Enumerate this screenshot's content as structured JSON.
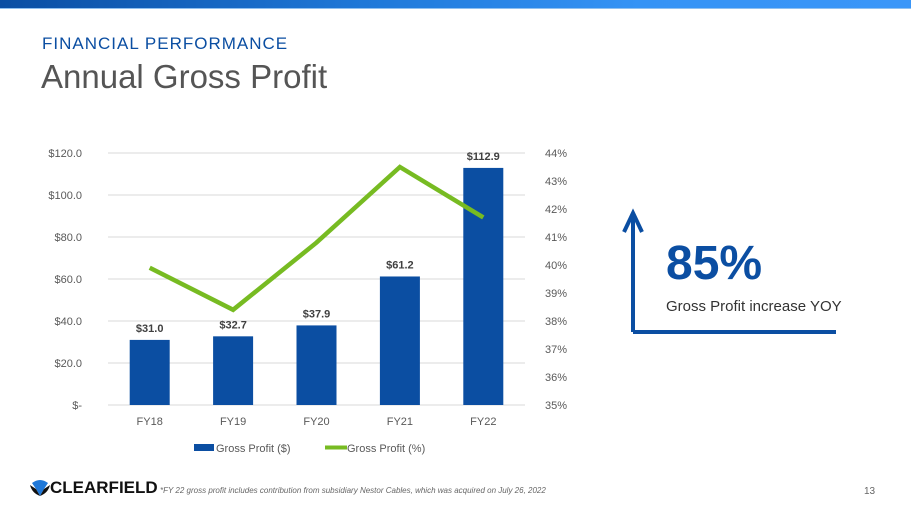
{
  "header": {
    "kicker": "FINANCIAL PERFORMANCE",
    "title": "Annual Gross Profit"
  },
  "chart_data": {
    "type": "bar+line",
    "categories": [
      "FY18",
      "FY19",
      "FY20",
      "FY21",
      "FY22"
    ],
    "series": [
      {
        "name": "Gross Profit ($)",
        "type": "bar",
        "axis": "left",
        "values": [
          31.0,
          32.7,
          37.9,
          61.2,
          112.9
        ],
        "labels": [
          "$31.0",
          "$32.7",
          "$37.9",
          "$61.2",
          "$112.9"
        ],
        "color": "#0b4ea2"
      },
      {
        "name": "Gross Profit (%)",
        "type": "line",
        "axis": "right",
        "values": [
          39.9,
          38.4,
          40.8,
          43.5,
          41.7
        ],
        "color": "#77bb22"
      }
    ],
    "left_axis": {
      "ylim": [
        0,
        120
      ],
      "ticks": [
        "$-",
        "$20.0",
        "$40.0",
        "$60.0",
        "$80.0",
        "$100.0",
        "$120.0"
      ]
    },
    "right_axis": {
      "ylim": [
        35,
        44
      ],
      "ticks": [
        "35%",
        "36%",
        "37%",
        "38%",
        "39%",
        "40%",
        "41%",
        "42%",
        "43%",
        "44%"
      ]
    },
    "grid": true,
    "legend": "bottom"
  },
  "callout": {
    "value": "85%",
    "label": "Gross Profit increase YOY"
  },
  "footer": {
    "logo": "CLEARFIELD",
    "note": "*FY 22 gross profit includes contribution from subsidiary Nestor Cables, which was acquired on July 26, 2022",
    "page": "13"
  }
}
